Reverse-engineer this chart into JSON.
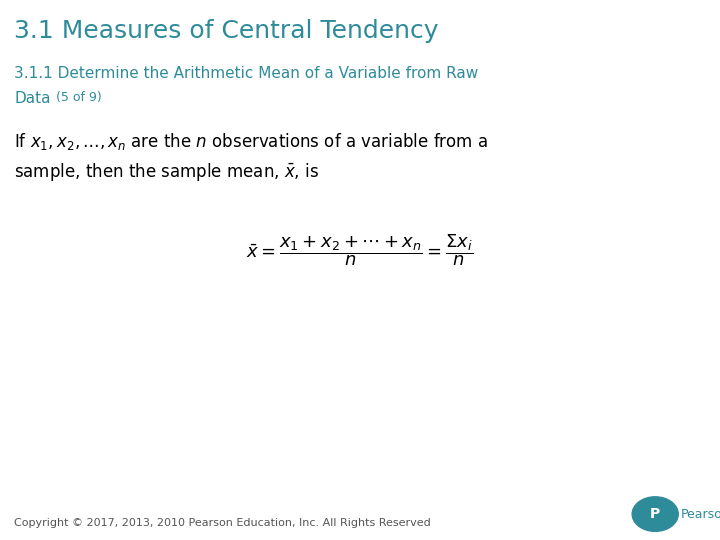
{
  "title": "3.1 Measures of Central Tendency",
  "title_color": "#2E8B9A",
  "subtitle_line1": "3.1.1 Determine the Arithmetic Mean of a Variable from Raw",
  "subtitle_line2": "Data",
  "subtitle_paren": " (5 of 9)",
  "subtitle_color": "#2E8B9A",
  "body_text_line1": "If $x_1, x_2, \\ldots, x_n$ are the $n$ observations of a variable from a",
  "body_text_line2": "sample, then the sample mean, $\\bar{x}$, is",
  "formula": "$\\bar{x} = \\dfrac{x_1 + x_2 + \\cdots + x_n}{n} = \\dfrac{\\Sigma x_i}{n}$",
  "copyright_text": "Copyright © 2017, 2013, 2010 Pearson Education, Inc. All Rights Reserved",
  "background_color": "#ffffff",
  "text_color": "#000000",
  "title_fontsize": 18,
  "subtitle_fontsize": 11,
  "body_fontsize": 12,
  "formula_fontsize": 13,
  "copyright_fontsize": 8
}
